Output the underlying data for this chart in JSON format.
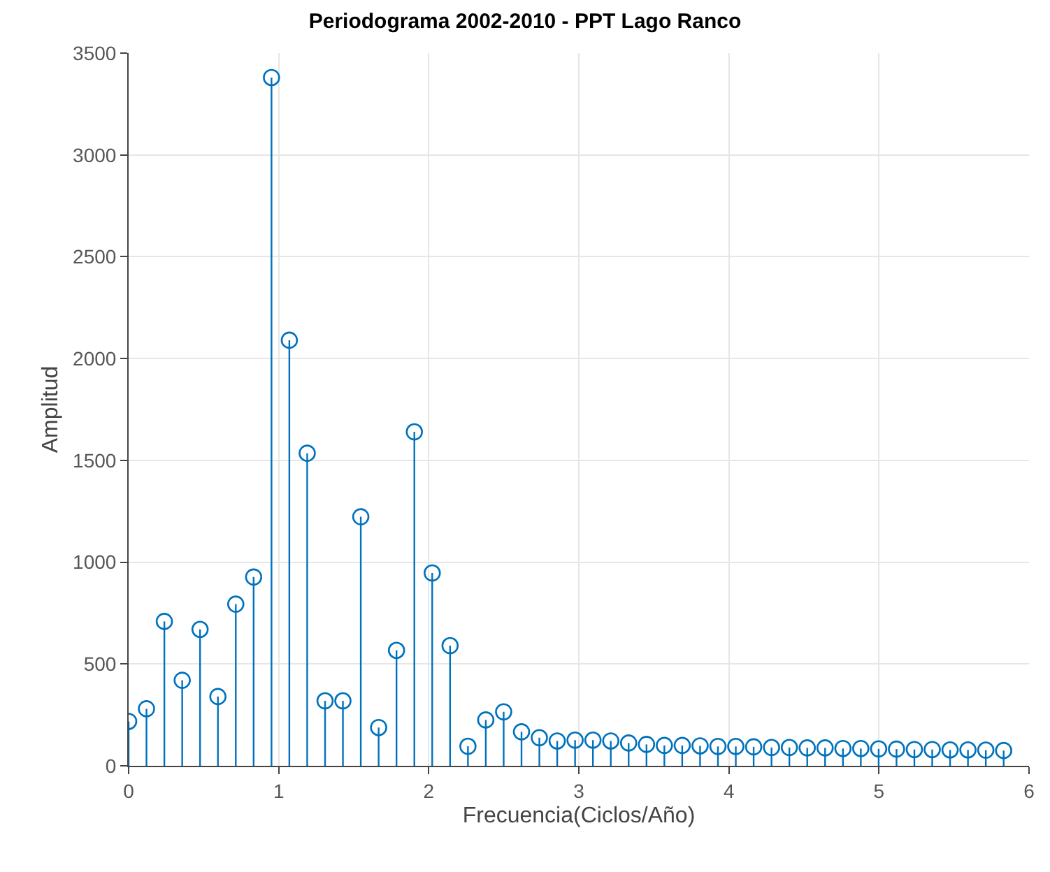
{
  "chart_data": {
    "type": "lollipop",
    "title": "Periodograma 2002-2010 - PPT Lago Ranco",
    "xlabel": "Frecuencia(Ciclos/Año)",
    "ylabel": "Amplitud",
    "x": [
      0,
      0.119,
      0.238,
      0.357,
      0.476,
      0.595,
      0.714,
      0.833,
      0.952,
      1.071,
      1.19,
      1.309,
      1.428,
      1.547,
      1.666,
      1.785,
      1.904,
      2.023,
      2.142,
      2.261,
      2.38,
      2.499,
      2.618,
      2.737,
      2.856,
      2.975,
      3.094,
      3.213,
      3.332,
      3.451,
      3.57,
      3.689,
      3.808,
      3.927,
      4.046,
      4.165,
      4.284,
      4.403,
      4.522,
      4.641,
      4.76,
      4.879,
      4.998,
      5.117,
      5.236,
      5.355,
      5.474,
      5.593,
      5.712,
      5.831
    ],
    "series": [
      {
        "color": "#0072bd",
        "values": [
          218,
          280,
          709,
          420,
          670,
          340,
          794,
          927,
          3380,
          2090,
          1535,
          319,
          319,
          1223,
          188,
          567,
          1640,
          947,
          590,
          96,
          225,
          265,
          167,
          138,
          122,
          126,
          126,
          122,
          112,
          105,
          100,
          100,
          98,
          95,
          95,
          93,
          90,
          90,
          88,
          88,
          85,
          85,
          83,
          82,
          80,
          80,
          78,
          78,
          77,
          75
        ]
      }
    ],
    "xlim": [
      0,
      6
    ],
    "xticks": [
      0,
      1,
      2,
      3,
      4,
      5,
      6
    ],
    "ylim": [
      0,
      3500
    ],
    "yticks": [
      0,
      500,
      1000,
      1500,
      2000,
      2500,
      3000,
      3500
    ],
    "grid": true,
    "marker": "circle"
  }
}
